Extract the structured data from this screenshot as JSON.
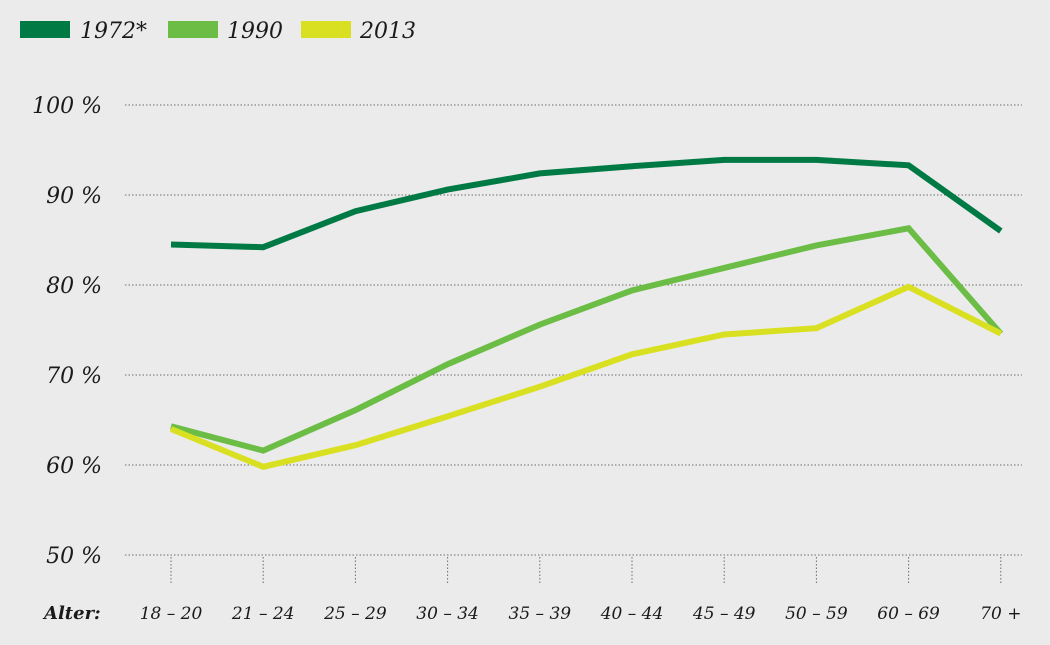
{
  "chart_data": {
    "type": "line",
    "categories": [
      "18 – 20",
      "21 – 24",
      "25 – 29",
      "30 – 34",
      "35 – 39",
      "40 – 44",
      "45 – 49",
      "50 – 59",
      "60 – 69",
      "70 +"
    ],
    "xlabel": "Alter:",
    "ylim": [
      50,
      100
    ],
    "yticks": [
      50,
      60,
      70,
      80,
      90,
      100
    ],
    "ytick_labels": [
      "50 %",
      "60 %",
      "70 %",
      "80 %",
      "90 %",
      "100 %"
    ],
    "grid": true,
    "legend_position": "top-left",
    "series": [
      {
        "name": "1972*",
        "color": "#007a45",
        "values": [
          84.5,
          84.2,
          88.2,
          90.6,
          92.4,
          93.2,
          93.9,
          93.9,
          93.3,
          86.0
        ]
      },
      {
        "name": "1990",
        "color": "#6bbd45",
        "values": [
          64.3,
          61.6,
          66.1,
          71.2,
          75.6,
          79.4,
          81.9,
          84.4,
          86.3,
          74.6
        ]
      },
      {
        "name": "2013",
        "color": "#d9e021",
        "values": [
          64.0,
          59.8,
          62.2,
          65.4,
          68.7,
          72.3,
          74.5,
          75.2,
          79.8,
          74.6
        ]
      }
    ]
  }
}
